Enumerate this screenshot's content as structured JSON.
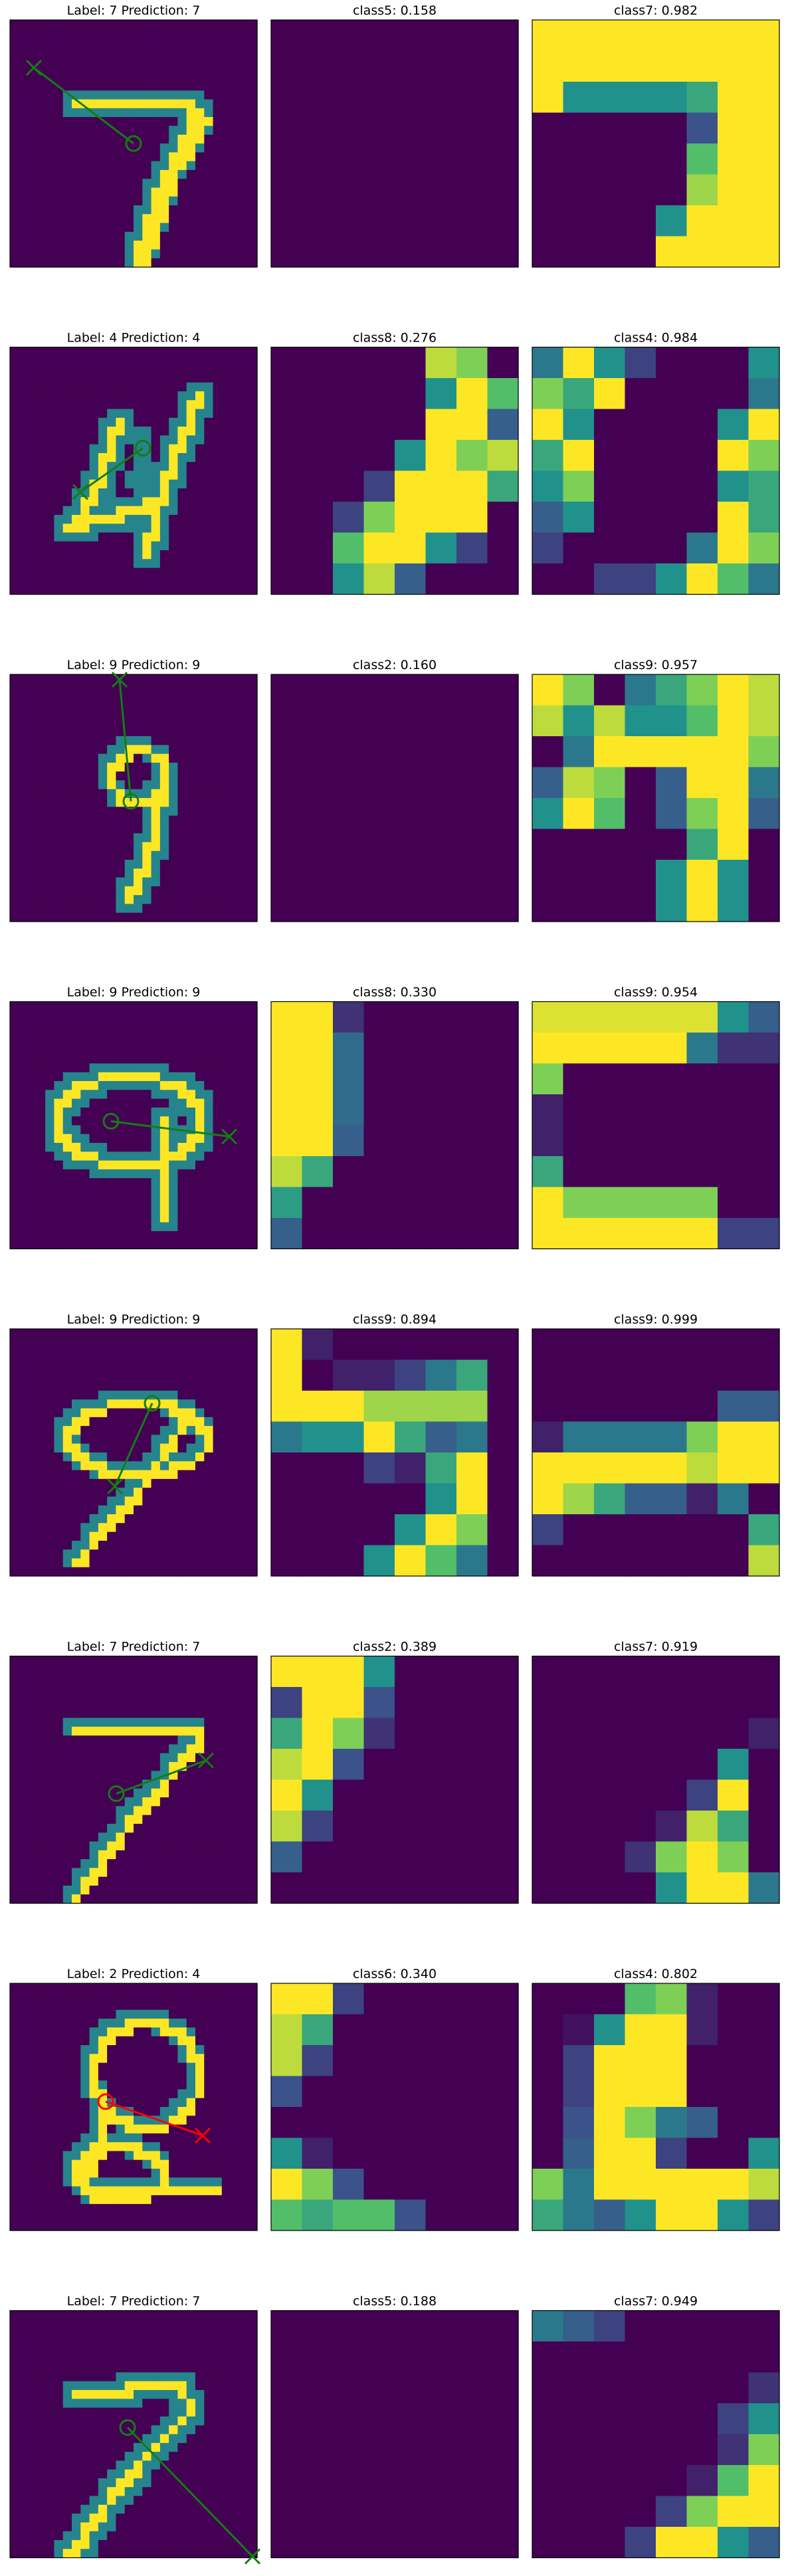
{
  "colors": {
    "background": "#ffffff",
    "frame": "#000000",
    "correct_arrow": "#137d13",
    "wrong_arrow": "#ff0000"
  },
  "colormap": {
    "name": "viridis",
    "stops": [
      "#440154",
      "#3b528b",
      "#21918c",
      "#5ec962",
      "#fde725"
    ]
  },
  "chart_data": {
    "type": "heatmap",
    "rows": [
      {
        "panels": [
          {
            "title": "Label: 7 Prediction: 7",
            "kind": "digit",
            "digit": "7",
            "arrow_color": "correct"
          },
          {
            "title": "class5: 0.158",
            "kind": "map",
            "pattern": "blank"
          },
          {
            "title": "class7: 0.982",
            "kind": "map",
            "pattern": "seven"
          }
        ]
      },
      {
        "panels": [
          {
            "title": "Label: 4 Prediction: 4",
            "kind": "digit",
            "digit": "4",
            "arrow_color": "correct"
          },
          {
            "title": "class8: 0.276",
            "kind": "map",
            "pattern": "diag"
          },
          {
            "title": "class4: 0.984",
            "kind": "map",
            "pattern": "four"
          }
        ]
      },
      {
        "panels": [
          {
            "title": "Label: 9 Prediction: 9",
            "kind": "digit",
            "digit": "9",
            "arrow_color": "correct"
          },
          {
            "title": "class2: 0.160",
            "kind": "map",
            "pattern": "blank"
          },
          {
            "title": "class9: 0.957",
            "kind": "map",
            "pattern": "nine"
          }
        ]
      },
      {
        "panels": [
          {
            "title": "Label: 9 Prediction: 9",
            "kind": "digit",
            "digit": "9b",
            "arrow_color": "correct"
          },
          {
            "title": "class8: 0.330",
            "kind": "map",
            "pattern": "leftcol"
          },
          {
            "title": "class9: 0.954",
            "kind": "map",
            "pattern": "frame"
          }
        ]
      },
      {
        "panels": [
          {
            "title": "Label: 9 Prediction: 9",
            "kind": "digit",
            "digit": "9c",
            "arrow_color": "correct"
          },
          {
            "title": "class9: 0.894",
            "kind": "map",
            "pattern": "band"
          },
          {
            "title": "class9: 0.999",
            "kind": "map",
            "pattern": "band2"
          }
        ]
      },
      {
        "panels": [
          {
            "title": "Label: 7 Prediction: 7",
            "kind": "digit",
            "digit": "7b",
            "arrow_color": "correct"
          },
          {
            "title": "class2: 0.389",
            "kind": "map",
            "pattern": "leftcol2"
          },
          {
            "title": "class7: 0.919",
            "kind": "map",
            "pattern": "corner"
          }
        ]
      },
      {
        "panels": [
          {
            "title": "Label: 2 Prediction: 4",
            "kind": "digit",
            "digit": "2",
            "arrow_color": "wrong"
          },
          {
            "title": "class6: 0.340",
            "kind": "map",
            "pattern": "leftcol3"
          },
          {
            "title": "class4: 0.802",
            "kind": "map",
            "pattern": "blob"
          }
        ]
      },
      {
        "panels": [
          {
            "title": "Label: 7 Prediction: 7",
            "kind": "digit",
            "digit": "7c",
            "arrow_color": "correct"
          },
          {
            "title": "class5: 0.188",
            "kind": "map",
            "pattern": "blank"
          },
          {
            "title": "class7: 0.949",
            "kind": "map",
            "pattern": "corner2"
          }
        ]
      }
    ]
  }
}
